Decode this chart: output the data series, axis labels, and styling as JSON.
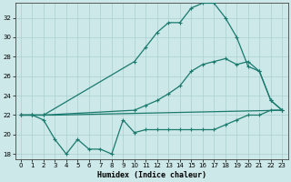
{
  "xlabel": "Humidex (Indice chaleur)",
  "xlim": [
    -0.5,
    23.5
  ],
  "ylim": [
    17.5,
    33.5
  ],
  "xticks": [
    0,
    1,
    2,
    3,
    4,
    5,
    6,
    7,
    8,
    9,
    10,
    11,
    12,
    13,
    14,
    15,
    16,
    17,
    18,
    19,
    20,
    21,
    22,
    23
  ],
  "yticks": [
    18,
    20,
    22,
    24,
    26,
    28,
    30,
    32
  ],
  "bg_color": "#cce8e8",
  "line_color": "#1a7a6e",
  "grid_color": "#aacfcf",
  "line1_x": [
    0,
    1,
    2,
    3,
    4,
    5,
    6,
    7,
    8,
    9,
    10,
    11,
    12,
    13,
    14,
    15,
    16,
    17,
    18,
    19,
    20,
    21,
    22,
    23
  ],
  "line1_y": [
    22,
    22,
    21.5,
    19.5,
    18,
    19.5,
    18.5,
    18.5,
    18,
    21.5,
    20.2,
    20.5,
    20.5,
    20.5,
    20.5,
    20.5,
    20.5,
    20.5,
    21,
    21.5,
    22,
    22,
    22.5,
    22.5
  ],
  "line2_x": [
    0,
    1,
    2,
    10,
    11,
    12,
    13,
    14,
    15,
    16,
    17,
    18,
    19,
    20,
    21,
    22,
    23
  ],
  "line2_y": [
    22,
    22,
    22,
    22.5,
    23.0,
    23.5,
    24.2,
    25.0,
    26.5,
    27.2,
    27.5,
    27.8,
    27.2,
    27.5,
    26.5,
    23.5,
    22.5
  ],
  "line3_x": [
    0,
    1,
    2,
    10,
    11,
    12,
    13,
    14,
    15,
    16,
    17,
    18,
    19,
    20,
    21,
    22,
    23
  ],
  "line3_y": [
    22,
    22,
    22,
    27.5,
    29.0,
    30.5,
    31.5,
    31.5,
    33.0,
    33.5,
    33.5,
    32.0,
    30.0,
    27.0,
    26.5,
    23.5,
    22.5
  ],
  "line4_x": [
    0,
    1,
    2,
    3,
    23
  ],
  "line4_y": [
    22,
    22,
    22,
    22,
    22.5
  ]
}
